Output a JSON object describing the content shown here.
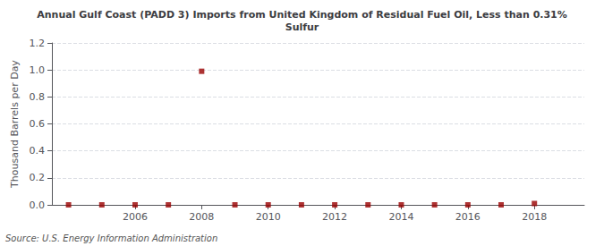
{
  "chart_data": {
    "type": "scatter",
    "title": "Annual Gulf Coast (PADD 3) Imports from United Kingdom of Residual Fuel Oil, Less than 0.31%\nSulfur",
    "ylabel": "Thousand Barrels per Day",
    "annotation": "Source: U.S. Energy Information Administration",
    "x": [
      2004,
      2005,
      2006,
      2007,
      2008,
      2009,
      2010,
      2011,
      2012,
      2013,
      2014,
      2015,
      2016,
      2017,
      2018
    ],
    "values": [
      0.0,
      0.0,
      0.0,
      0.0,
      0.99,
      0.0,
      0.0,
      0.0,
      0.0,
      0.0,
      0.0,
      0.0,
      0.0,
      0.0,
      0.01
    ],
    "color": "#990000",
    "marker": "square",
    "xlim": [
      2003.5,
      2019.5
    ],
    "xticks": [
      2006,
      2008,
      2010,
      2012,
      2014,
      2016,
      2018
    ],
    "ylim": [
      0.0,
      1.2
    ],
    "yticks": [
      {
        "value": 0.0,
        "label": "0.0"
      },
      0.2,
      0.4,
      0.6,
      0.8,
      {
        "value": 1.0,
        "label": "1.0"
      },
      1.2
    ],
    "grid": true
  }
}
